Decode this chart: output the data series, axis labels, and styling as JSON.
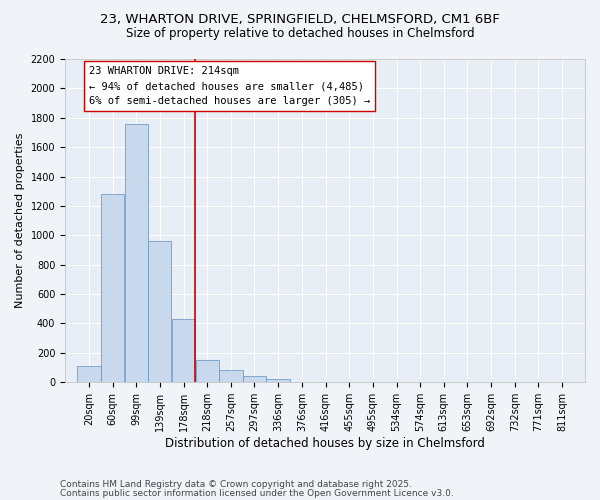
{
  "title1": "23, WHARTON DRIVE, SPRINGFIELD, CHELMSFORD, CM1 6BF",
  "title2": "Size of property relative to detached houses in Chelmsford",
  "xlabel": "Distribution of detached houses by size in Chelmsford",
  "ylabel": "Number of detached properties",
  "annotation_title": "23 WHARTON DRIVE: 214sqm",
  "annotation_line1": "← 94% of detached houses are smaller (4,485)",
  "annotation_line2": "6% of semi-detached houses are larger (305) →",
  "footer1": "Contains HM Land Registry data © Crown copyright and database right 2025.",
  "footer2": "Contains public sector information licensed under the Open Government Licence v3.0.",
  "bar_color": "#c8d8ed",
  "bar_edge_color": "#6090c0",
  "reference_line_x": 218,
  "reference_line_color": "#cc0000",
  "categories": [
    "20sqm",
    "60sqm",
    "99sqm",
    "139sqm",
    "178sqm",
    "218sqm",
    "257sqm",
    "297sqm",
    "336sqm",
    "376sqm",
    "416sqm",
    "455sqm",
    "495sqm",
    "534sqm",
    "574sqm",
    "613sqm",
    "653sqm",
    "692sqm",
    "732sqm",
    "771sqm",
    "811sqm"
  ],
  "bin_edges": [
    20,
    60,
    99,
    139,
    178,
    218,
    257,
    297,
    336,
    376,
    416,
    455,
    495,
    534,
    574,
    613,
    653,
    692,
    732,
    771,
    811
  ],
  "values": [
    110,
    1280,
    1760,
    960,
    430,
    150,
    80,
    40,
    25,
    0,
    0,
    0,
    0,
    0,
    0,
    0,
    0,
    0,
    0,
    0,
    0
  ],
  "ylim": [
    0,
    2200
  ],
  "yticks": [
    0,
    200,
    400,
    600,
    800,
    1000,
    1200,
    1400,
    1600,
    1800,
    2000,
    2200
  ],
  "bg_color": "#f0f4f8",
  "plot_bg_color": "#e8eef5",
  "title_fontsize": 9.5,
  "subtitle_fontsize": 8.5,
  "axis_label_fontsize": 8,
  "tick_fontsize": 7,
  "annotation_fontsize": 7.5,
  "footer_fontsize": 6.5
}
